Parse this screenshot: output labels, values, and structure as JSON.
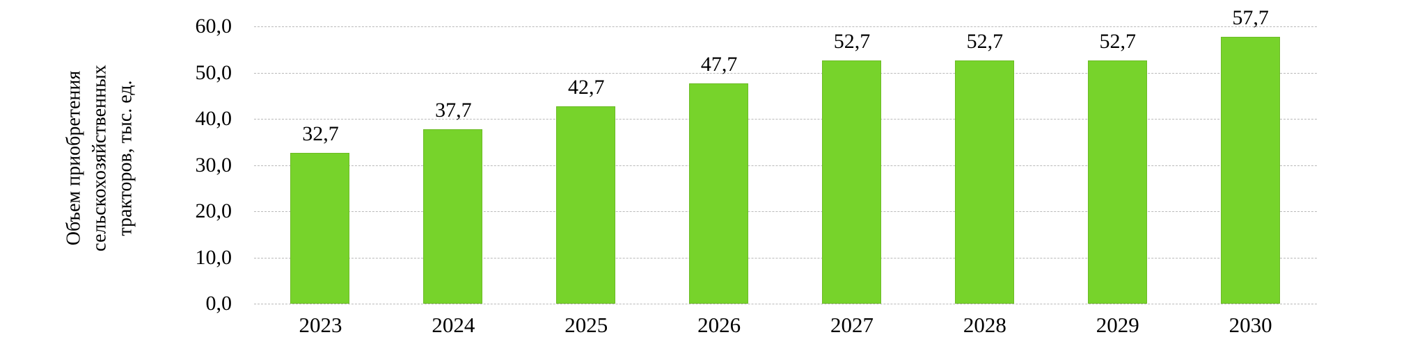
{
  "chart_data": {
    "type": "bar",
    "title": "",
    "categories": [
      "2023",
      "2024",
      "2025",
      "2026",
      "2027",
      "2028",
      "2029",
      "2030"
    ],
    "values": [
      32.7,
      37.7,
      42.7,
      47.7,
      52.7,
      52.7,
      52.7,
      57.7
    ],
    "value_labels": [
      "32,7",
      "37,7",
      "42,7",
      "47,7",
      "52,7",
      "52,7",
      "52,7",
      "57,7"
    ],
    "ylabel": "Объем приобретения сельскохозяйственных тракторов, тыс. ед.",
    "ylabel_lines": {
      "0": "Объем приобретения",
      "1": "сельскохозяйственных",
      "2": "тракторов, тыс. ед."
    },
    "xlabel": "",
    "ylim": [
      0,
      60
    ],
    "ytick_step": 10,
    "ytick_labels": [
      "0,0",
      "10,0",
      "20,0",
      "30,0",
      "40,0",
      "50,0",
      "60,0"
    ],
    "grid": "horizontal-dashed",
    "legend": "none",
    "colors": {
      "bar_fill": "#77d32b",
      "bar_border": "#6cbb25",
      "gridline": "#b9b9b9",
      "text": "#000000",
      "background": "#ffffff"
    }
  }
}
